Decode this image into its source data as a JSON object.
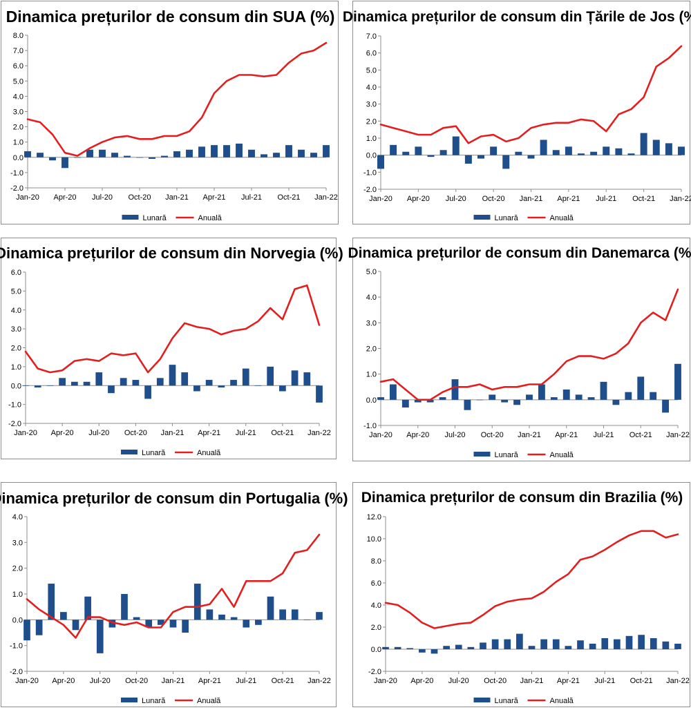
{
  "legend": {
    "monthly": "Lunară",
    "annual": "Anuală"
  },
  "colors": {
    "bar": "#1f4e8c",
    "line": "#e41e1e",
    "axis": "#8c8c8c",
    "grid": "#c8c8c8"
  },
  "chart_data": [
    {
      "type": "bar+line",
      "title": "Dinamica prețurilor de consum din SUA (%)",
      "yticks": [
        "8.0",
        "7.0",
        "6.0",
        "5.0",
        "4.0",
        "3.0",
        "2.0",
        "1.0",
        "0.0",
        "-1.0",
        "-2.0"
      ],
      "ylim": [
        -2,
        8
      ],
      "xticks": [
        "Jan-20",
        "Apr-20",
        "Jul-20",
        "Oct-20",
        "Jan-21",
        "Apr-21",
        "Jul-21",
        "Oct-21",
        "Jan-22"
      ],
      "series": [
        {
          "name": "Lunară",
          "type": "bar",
          "values": [
            0.4,
            0.3,
            -0.2,
            -0.7,
            0.0,
            0.5,
            0.5,
            0.3,
            0.1,
            0.0,
            -0.1,
            0.1,
            0.4,
            0.5,
            0.7,
            0.8,
            0.8,
            0.9,
            0.5,
            0.2,
            0.3,
            0.8,
            0.5,
            0.3,
            0.8
          ]
        },
        {
          "name": "Anuală",
          "type": "line",
          "values": [
            2.5,
            2.3,
            1.5,
            0.3,
            0.1,
            0.6,
            1.0,
            1.3,
            1.4,
            1.2,
            1.2,
            1.4,
            1.4,
            1.7,
            2.6,
            4.2,
            5.0,
            5.4,
            5.4,
            5.3,
            5.4,
            6.2,
            6.8,
            7.0,
            7.5
          ]
        }
      ]
    },
    {
      "type": "bar+line",
      "title": "Dinamica prețurilor de consum din Țările de Jos (%)",
      "yticks": [
        "7.0",
        "6.0",
        "5.0",
        "4.0",
        "3.0",
        "2.0",
        "1.0",
        "0.0",
        "-1.0",
        "-2.0"
      ],
      "ylim": [
        -2,
        7
      ],
      "xticks": [
        "Jan-20",
        "Apr-20",
        "Jul-20",
        "Oct-20",
        "Jan-21",
        "Apr-21",
        "Jul-21",
        "Oct-21",
        "Jan-22"
      ],
      "series": [
        {
          "name": "Lunară",
          "type": "bar",
          "values": [
            -0.8,
            0.6,
            0.2,
            0.5,
            -0.1,
            0.3,
            1.1,
            -0.5,
            -0.2,
            0.5,
            -0.8,
            0.2,
            -0.2,
            0.9,
            0.3,
            0.5,
            0.1,
            0.2,
            0.5,
            0.4,
            0.1,
            1.3,
            0.9,
            0.7,
            0.5
          ]
        },
        {
          "name": "Anuală",
          "type": "line",
          "values": [
            1.8,
            1.6,
            1.4,
            1.2,
            1.2,
            1.6,
            1.7,
            0.7,
            1.1,
            1.2,
            0.8,
            1.0,
            1.6,
            1.8,
            1.9,
            1.9,
            2.1,
            2.0,
            1.4,
            2.4,
            2.7,
            3.4,
            5.2,
            5.7,
            6.4
          ]
        }
      ]
    },
    {
      "type": "bar+line",
      "title": "Dinamica prețurilor de consum din Norvegia (%)",
      "yticks": [
        "6.0",
        "5.0",
        "4.0",
        "3.0",
        "2.0",
        "1.0",
        "0.0",
        "-1.0",
        "-2.0"
      ],
      "ylim": [
        -2,
        6
      ],
      "xticks": [
        "Jan-20",
        "Apr-20",
        "Jul-20",
        "Oct-20",
        "Jan-21",
        "Apr-21",
        "Jul-21",
        "Oct-21",
        "Jan-22"
      ],
      "series": [
        {
          "name": "Lunară",
          "type": "bar",
          "values": [
            0.0,
            -0.1,
            0.0,
            0.4,
            0.2,
            0.2,
            0.7,
            -0.4,
            0.4,
            0.3,
            -0.7,
            0.4,
            1.1,
            0.7,
            -0.3,
            0.3,
            -0.1,
            0.3,
            0.9,
            0.0,
            1.0,
            -0.3,
            0.8,
            0.7,
            -0.9
          ]
        },
        {
          "name": "Anuală",
          "type": "line",
          "values": [
            1.8,
            0.9,
            0.7,
            0.8,
            1.3,
            1.4,
            1.3,
            1.7,
            1.6,
            1.7,
            0.7,
            1.4,
            2.5,
            3.3,
            3.1,
            3.0,
            2.7,
            2.9,
            3.0,
            3.4,
            4.1,
            3.5,
            5.1,
            5.3,
            3.2
          ]
        }
      ]
    },
    {
      "type": "bar+line",
      "title": "Dinamica prețurilor de consum din Danemarca (%)",
      "yticks": [
        "5.0",
        "4.0",
        "3.0",
        "2.0",
        "1.0",
        "0.0",
        "-1.0"
      ],
      "ylim": [
        -1,
        5
      ],
      "xticks": [
        "Jan-20",
        "Apr-20",
        "Jul-20",
        "Oct-20",
        "Jan-21",
        "Apr-21",
        "Jul-21",
        "Oct-21",
        "Jan-22"
      ],
      "series": [
        {
          "name": "Lunară",
          "type": "bar",
          "values": [
            0.1,
            0.6,
            -0.3,
            -0.1,
            -0.1,
            0.1,
            0.8,
            -0.4,
            0.0,
            0.2,
            -0.1,
            -0.2,
            0.2,
            0.6,
            0.1,
            0.4,
            0.2,
            0.1,
            0.7,
            -0.2,
            0.3,
            0.9,
            0.3,
            -0.5,
            1.4
          ]
        },
        {
          "name": "Anuală",
          "type": "line",
          "values": [
            0.7,
            0.8,
            0.4,
            0.0,
            0.0,
            0.3,
            0.5,
            0.5,
            0.6,
            0.4,
            0.5,
            0.5,
            0.6,
            0.6,
            1.0,
            1.5,
            1.7,
            1.7,
            1.6,
            1.8,
            2.2,
            3.0,
            3.4,
            3.1,
            4.3
          ]
        }
      ]
    },
    {
      "type": "bar+line",
      "title": "Dinamica prețurilor de consum din Portugalia (%)",
      "yticks": [
        "4.0",
        "3.0",
        "2.0",
        "1.0",
        "0.0",
        "-1.0",
        "-2.0"
      ],
      "ylim": [
        -2,
        4
      ],
      "xticks": [
        "Jan-20",
        "Apr-20",
        "Jul-20",
        "Oct-20",
        "Jan-21",
        "Apr-21",
        "Jul-21",
        "Oct-21",
        "Jan-22"
      ],
      "series": [
        {
          "name": "Lunară",
          "type": "bar",
          "values": [
            -0.8,
            -0.6,
            1.4,
            0.3,
            -0.4,
            0.9,
            -1.3,
            -0.3,
            1.0,
            0.1,
            -0.3,
            -0.2,
            -0.3,
            -0.5,
            1.4,
            0.4,
            0.2,
            0.1,
            -0.3,
            -0.2,
            0.9,
            0.4,
            0.4,
            0.0,
            0.3
          ]
        },
        {
          "name": "Anuală",
          "type": "line",
          "values": [
            0.8,
            0.4,
            0.1,
            -0.2,
            -0.7,
            0.1,
            0.1,
            -0.1,
            -0.2,
            -0.1,
            -0.3,
            -0.3,
            0.3,
            0.5,
            0.5,
            0.6,
            1.2,
            0.5,
            1.5,
            1.5,
            1.5,
            1.8,
            2.6,
            2.7,
            3.3
          ]
        }
      ]
    },
    {
      "type": "bar+line",
      "title": "Dinamica prețurilor de consum din Brazilia (%)",
      "yticks": [
        "12.0",
        "10.0",
        "8.0",
        "6.0",
        "4.0",
        "2.0",
        "0.0",
        "-2.0"
      ],
      "ylim": [
        -2,
        12
      ],
      "xticks": [
        "Jan-20",
        "Apr-20",
        "Jul-20",
        "Oct-20",
        "Jan-21",
        "Apr-21",
        "Jul-21",
        "Oct-21",
        "Jan-22"
      ],
      "series": [
        {
          "name": "Lunară",
          "type": "bar",
          "values": [
            0.2,
            0.2,
            0.1,
            -0.3,
            -0.4,
            0.3,
            0.4,
            0.2,
            0.6,
            0.9,
            0.9,
            1.4,
            0.3,
            0.9,
            0.9,
            0.3,
            0.8,
            0.5,
            1.0,
            0.9,
            1.2,
            1.3,
            1.0,
            0.7,
            0.5
          ]
        },
        {
          "name": "Anuală",
          "type": "line",
          "values": [
            4.2,
            4.0,
            3.3,
            2.4,
            1.9,
            2.1,
            2.3,
            2.4,
            3.1,
            3.9,
            4.3,
            4.5,
            4.6,
            5.2,
            6.1,
            6.8,
            8.1,
            8.4,
            9.0,
            9.7,
            10.3,
            10.7,
            10.7,
            10.1,
            10.4
          ]
        }
      ]
    }
  ]
}
